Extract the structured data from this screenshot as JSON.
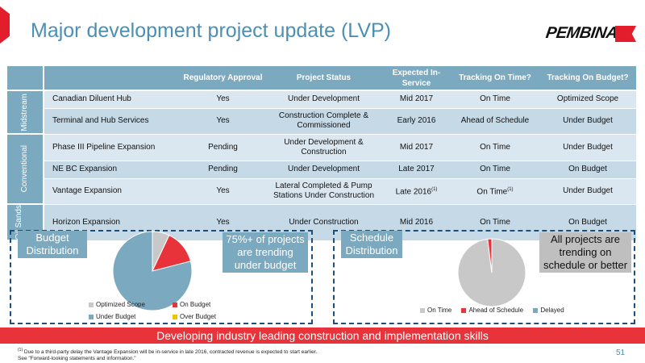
{
  "slide": {
    "title": "Major development project update (LVP)",
    "logo_text": "PEMBINA",
    "page_number": "51"
  },
  "table": {
    "headers": [
      "Regulatory Approval",
      "Project Status",
      "Expected In-Service",
      "Tracking On Time?",
      "Tracking On Budget?"
    ],
    "groups": [
      {
        "label": "Midstream",
        "rows": [
          {
            "name": "Canadian Diluent Hub",
            "approval": "Yes",
            "status": "Under Development",
            "in_service": "Mid 2017",
            "on_time": "On Time",
            "on_budget": "Optimized Scope"
          },
          {
            "name": "Terminal and Hub Services",
            "approval": "Yes",
            "status": "Construction Complete & Commissioned",
            "in_service": "Early 2016",
            "on_time": "Ahead of Schedule",
            "on_budget": "Under Budget"
          }
        ]
      },
      {
        "label": "Conventional",
        "rows": [
          {
            "name": "Phase III Pipeline Expansion",
            "approval": "Pending",
            "status": "Under Development & Construction",
            "in_service": "Mid 2017",
            "on_time": "On Time",
            "on_budget": "Under Budget"
          },
          {
            "name": "NE BC Expansion",
            "approval": "Pending",
            "status": "Under Development",
            "in_service": "Late 2017",
            "on_time": "On Time",
            "on_budget": "On Budget"
          },
          {
            "name": "Vantage Expansion",
            "approval": "Yes",
            "status": "Lateral Completed & Pump Stations Under Construction",
            "in_service": "Late 2016",
            "in_service_sup": "(1)",
            "on_time": "On Time",
            "on_time_sup": "(1)",
            "on_budget": "Under Budget"
          }
        ]
      },
      {
        "label": "Oil Sands",
        "rows": [
          {
            "name": "Horizon Expansion",
            "approval": "Yes",
            "status": "Under Construction",
            "in_service": "Mid 2016",
            "on_time": "On Time",
            "on_budget": "On Budget"
          }
        ]
      }
    ]
  },
  "budget_panel": {
    "label": "Budget Distribution",
    "callout": "75%+ of projects are trending under budget"
  },
  "schedule_panel": {
    "label": "Schedule Distribution",
    "callout": "All projects are trending on schedule or better"
  },
  "chart_data": [
    {
      "type": "pie",
      "title": "",
      "categories": [
        "Optimized Scope",
        "On Budget",
        "Under Budget",
        "Over Budget"
      ],
      "values": [
        7,
        14,
        79,
        0
      ],
      "colors": [
        "#c8c8c8",
        "#e8333b",
        "#7aa9c0",
        "#f2c200"
      ],
      "legend_position": "bottom"
    },
    {
      "type": "pie",
      "title": "",
      "categories": [
        "On Time",
        "Ahead of Schedule",
        "Delayed"
      ],
      "values": [
        98,
        2,
        0
      ],
      "colors": [
        "#c8c8c8",
        "#e8333b",
        "#7aa9c0"
      ],
      "legend_position": "bottom"
    }
  ],
  "banner": "Developing industry leading construction and implementation skills",
  "footnote": {
    "marker": "(1)",
    "line1": " Due to a third-party delay the Vantage Expansion will be in-service in late 2016, contracted revenue is expected to start earlier.",
    "line2": "See \"Forward-looking statements and information.\""
  }
}
